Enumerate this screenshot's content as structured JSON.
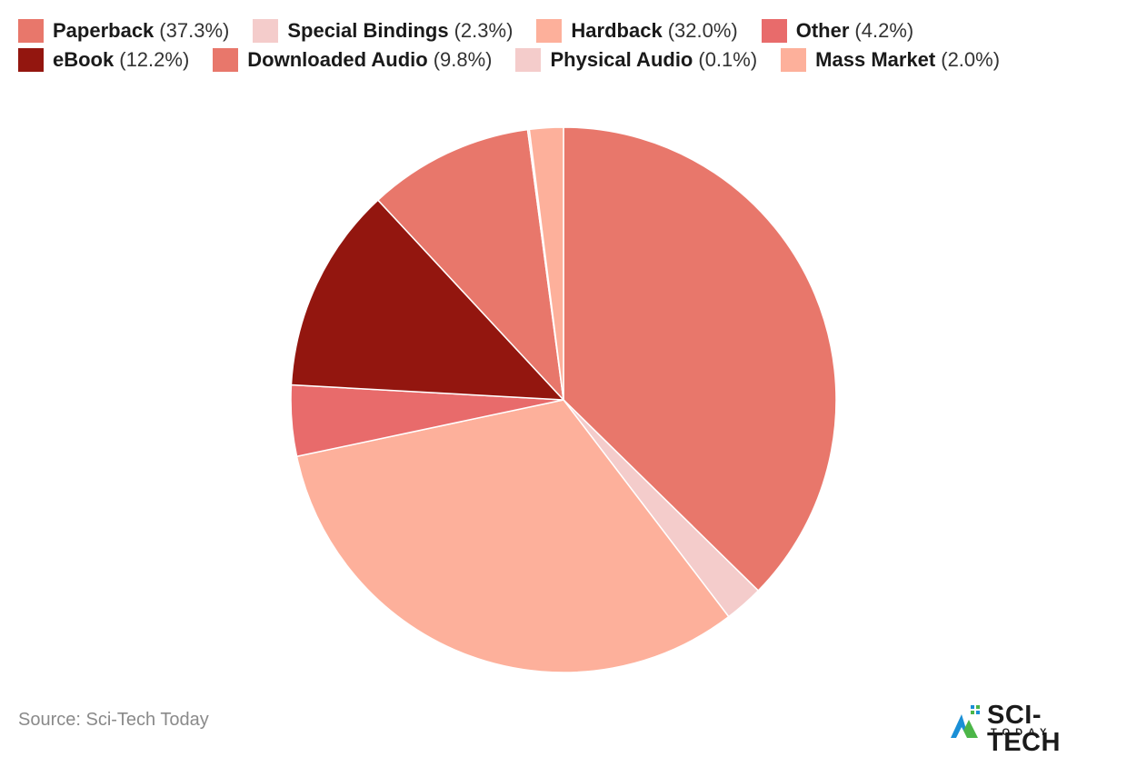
{
  "chart_data": {
    "type": "pie",
    "slices": [
      {
        "name": "Paperback",
        "value": 37.3,
        "label": "(37.3%)",
        "color": "#e8776b"
      },
      {
        "name": "Special Bindings",
        "value": 2.3,
        "label": "(2.3%)",
        "color": "#f4cccb"
      },
      {
        "name": "Hardback",
        "value": 32.0,
        "label": "(32.0%)",
        "color": "#fdb09b"
      },
      {
        "name": "Other",
        "value": 4.2,
        "label": "(4.2%)",
        "color": "#e86b6b"
      },
      {
        "name": "eBook",
        "value": 12.2,
        "label": "(12.2%)",
        "color": "#93160f"
      },
      {
        "name": "Downloaded Audio",
        "value": 9.8,
        "label": "(9.8%)",
        "color": "#e8776b"
      },
      {
        "name": "Physical Audio",
        "value": 0.1,
        "label": "(0.1%)",
        "color": "#f4cccb"
      },
      {
        "name": "Mass Market",
        "value": 2.0,
        "label": "(2.0%)",
        "color": "#fdb09b"
      }
    ],
    "legend_position": "top"
  },
  "source": "Source: Sci-Tech Today",
  "logo": {
    "title": "SCI-TECH",
    "subtitle": "TODAY"
  }
}
